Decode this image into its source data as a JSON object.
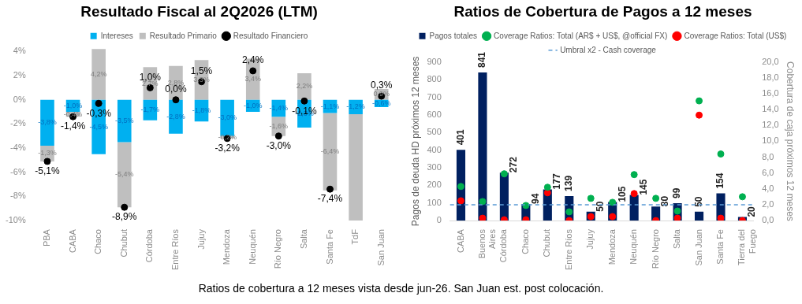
{
  "chart_data": [
    {
      "type": "bar",
      "title": "Resultado Fiscal al 2Q2026 (LTM)",
      "stacked": true,
      "legend": "top",
      "ylim": [
        -10,
        4.3
      ],
      "yticks": [
        {
          "value": -10,
          "label": "-10%"
        },
        {
          "value": -8,
          "label": "-8%"
        },
        {
          "value": -6,
          "label": "-6%"
        },
        {
          "value": -4,
          "label": "-4%"
        },
        {
          "value": -2,
          "label": "-2%"
        },
        {
          "value": 0,
          "label": "0%"
        },
        {
          "value": 2,
          "label": "2%"
        },
        {
          "value": 4,
          "label": "4%"
        }
      ],
      "categories": [
        "PBA",
        "CABA",
        "Chaco",
        "Chubut",
        "Córdoba",
        "Entre Ríos",
        "Jujuy",
        "Mendoza",
        "Neuquén",
        "Río Negro",
        "Salta",
        "Santa Fe",
        "TdF",
        "San Juan"
      ],
      "series": [
        {
          "name": "Intereses",
          "color": "#00b0f0",
          "values": [
            -3.8,
            -1.0,
            -4.5,
            -3.5,
            -1.7,
            -2.8,
            -1.8,
            -3.0,
            -1.0,
            -1.4,
            -2.3,
            -1.1,
            -1.2,
            -0.6
          ],
          "value_labels": [
            "-3,8%",
            "-1,0%",
            "-4,5%",
            "-3,5%",
            "-1,7%",
            "-2,8%",
            "-1,8%",
            "-3,0%",
            "-1,0%",
            "-1,4%",
            "-2,3%",
            "-1,1%",
            "-1,2%",
            "-0,6%"
          ]
        },
        {
          "name": "Resultado Primario",
          "color": "#bfbfbf",
          "values": [
            -1.3,
            -0.4,
            4.2,
            -5.4,
            2.7,
            2.8,
            3.3,
            -0.2,
            3.4,
            -1.6,
            2.2,
            -6.4,
            -8.8,
            0.9
          ],
          "value_labels": [
            "-1,3%",
            "-0,4%",
            "4,2%",
            "-5,4%",
            "2,7%",
            "2,8%",
            "3,3%",
            "-0,2%",
            "3,4%",
            "-1,6%",
            "2,2%",
            "-6,4%",
            null,
            "0,9%"
          ]
        },
        {
          "name": "Resultado Financiero",
          "type": "scatter",
          "color": "#000000",
          "x": [
            "PBA",
            "CABA",
            "Chaco",
            "Chubut",
            "Córdoba",
            "Entre Ríos",
            "Jujuy",
            "Mendoza",
            "Neuquén",
            "Río Negro",
            "Salta",
            "Santa Fe",
            "TdF",
            "San Juan"
          ],
          "values": [
            -5.1,
            -1.4,
            -0.3,
            -8.9,
            1.0,
            0.0,
            1.5,
            -3.2,
            2.4,
            -3.0,
            -0.1,
            -7.4,
            null,
            0.3
          ],
          "value_labels": [
            "-5,1%",
            "-1,4%",
            "-0,3%",
            "-8,9%",
            "1,0%",
            "0,0%",
            "1,5%",
            "-3,2%",
            "2,4%",
            "-3,0%",
            "-0,1%",
            "-7,4%",
            null,
            "0,3%"
          ]
        }
      ]
    },
    {
      "type": "bar",
      "title": "Ratios de Cobertura de Pagos a 12 meses",
      "legend": "top",
      "ylabel": "Pagos de deuda HD próximos 12 meses",
      "y2label": "Cobertura de caja próximos 12 meses",
      "ylim": [
        0,
        900
      ],
      "yticks": [
        0,
        100,
        200,
        300,
        400,
        500,
        600,
        700,
        800,
        900
      ],
      "y2lim": [
        0,
        20
      ],
      "y2ticks": [
        {
          "value": 0,
          "label": "0,0"
        },
        {
          "value": 2,
          "label": "2,0"
        },
        {
          "value": 4,
          "label": "4,0"
        },
        {
          "value": 6,
          "label": "6,0"
        },
        {
          "value": 8,
          "label": "8,0"
        },
        {
          "value": 10,
          "label": "10,0"
        },
        {
          "value": 12,
          "label": "12,0"
        },
        {
          "value": 14,
          "label": "14,0"
        },
        {
          "value": 16,
          "label": "16,0"
        },
        {
          "value": 18,
          "label": "18,0"
        },
        {
          "value": 20,
          "label": "20,0"
        }
      ],
      "categories": [
        "CABA",
        "Buenos Aires",
        "Córdoba",
        "Chaco",
        "Chubut",
        "Entre Ríos",
        "Jujuy",
        "Mendoza",
        "Neuquén",
        "Río Negro",
        "Salta",
        "San Juan",
        "Santa Fe",
        "Tierra del Fuego"
      ],
      "series": [
        {
          "name": "Pagos totales",
          "color": "#002060",
          "values": [
            401,
            841,
            272,
            94,
            177,
            139,
            50,
            105,
            145,
            80,
            99,
            50,
            154,
            20
          ],
          "value_labels": [
            "401",
            "841",
            "272",
            "94",
            "177",
            "139",
            "50",
            "105",
            "145",
            "80",
            "99",
            "50",
            "154",
            "20"
          ]
        },
        {
          "name": "Coverage Ratios: Total (AR$ + US$, @official FX)",
          "type": "scatter",
          "axis": "y2",
          "color": "#00b050",
          "x": [
            "CABA",
            "Buenos Aires",
            "Córdoba",
            "Chaco",
            "Chubut",
            "Entre Ríos",
            "Jujuy",
            "Mendoza",
            "Neuquén",
            "Río Negro",
            "Salta",
            "San Juan",
            "Santa Fe",
            "Tierra del Fuego"
          ],
          "values": [
            4.3,
            2.4,
            5.9,
            1.9,
            4.2,
            1.1,
            2.8,
            2.3,
            5.8,
            2.8,
            1.2,
            15.1,
            8.4,
            3.0
          ]
        },
        {
          "name": "Coverage Ratios: Total (US$)",
          "type": "scatter",
          "axis": "y2",
          "color": "#ff0000",
          "x": [
            "CABA",
            "Buenos Aires",
            "Córdoba",
            "Chaco",
            "Chubut",
            "Entre Ríos",
            "Jujuy",
            "Mendoza",
            "Neuquén",
            "Río Negro",
            "Salta",
            "San Juan",
            "Santa Fe",
            "Tierra del Fuego"
          ],
          "values": [
            2.5,
            0.3,
            0.1,
            0.1,
            3.5,
            0.0,
            0.5,
            0.5,
            3.4,
            0.0,
            0.3,
            13.3,
            0.3,
            0.0
          ]
        }
      ],
      "ref_lines": [
        {
          "axis": "y2",
          "value": 2,
          "label": "Umbral x2 - Cash coverage",
          "color": "#5b9bd5",
          "line_style": "dashed"
        }
      ],
      "annotations": [
        "Ratios de cobertura a 12 meses vista desde jun-26. San Juan est. post colocación."
      ]
    }
  ]
}
